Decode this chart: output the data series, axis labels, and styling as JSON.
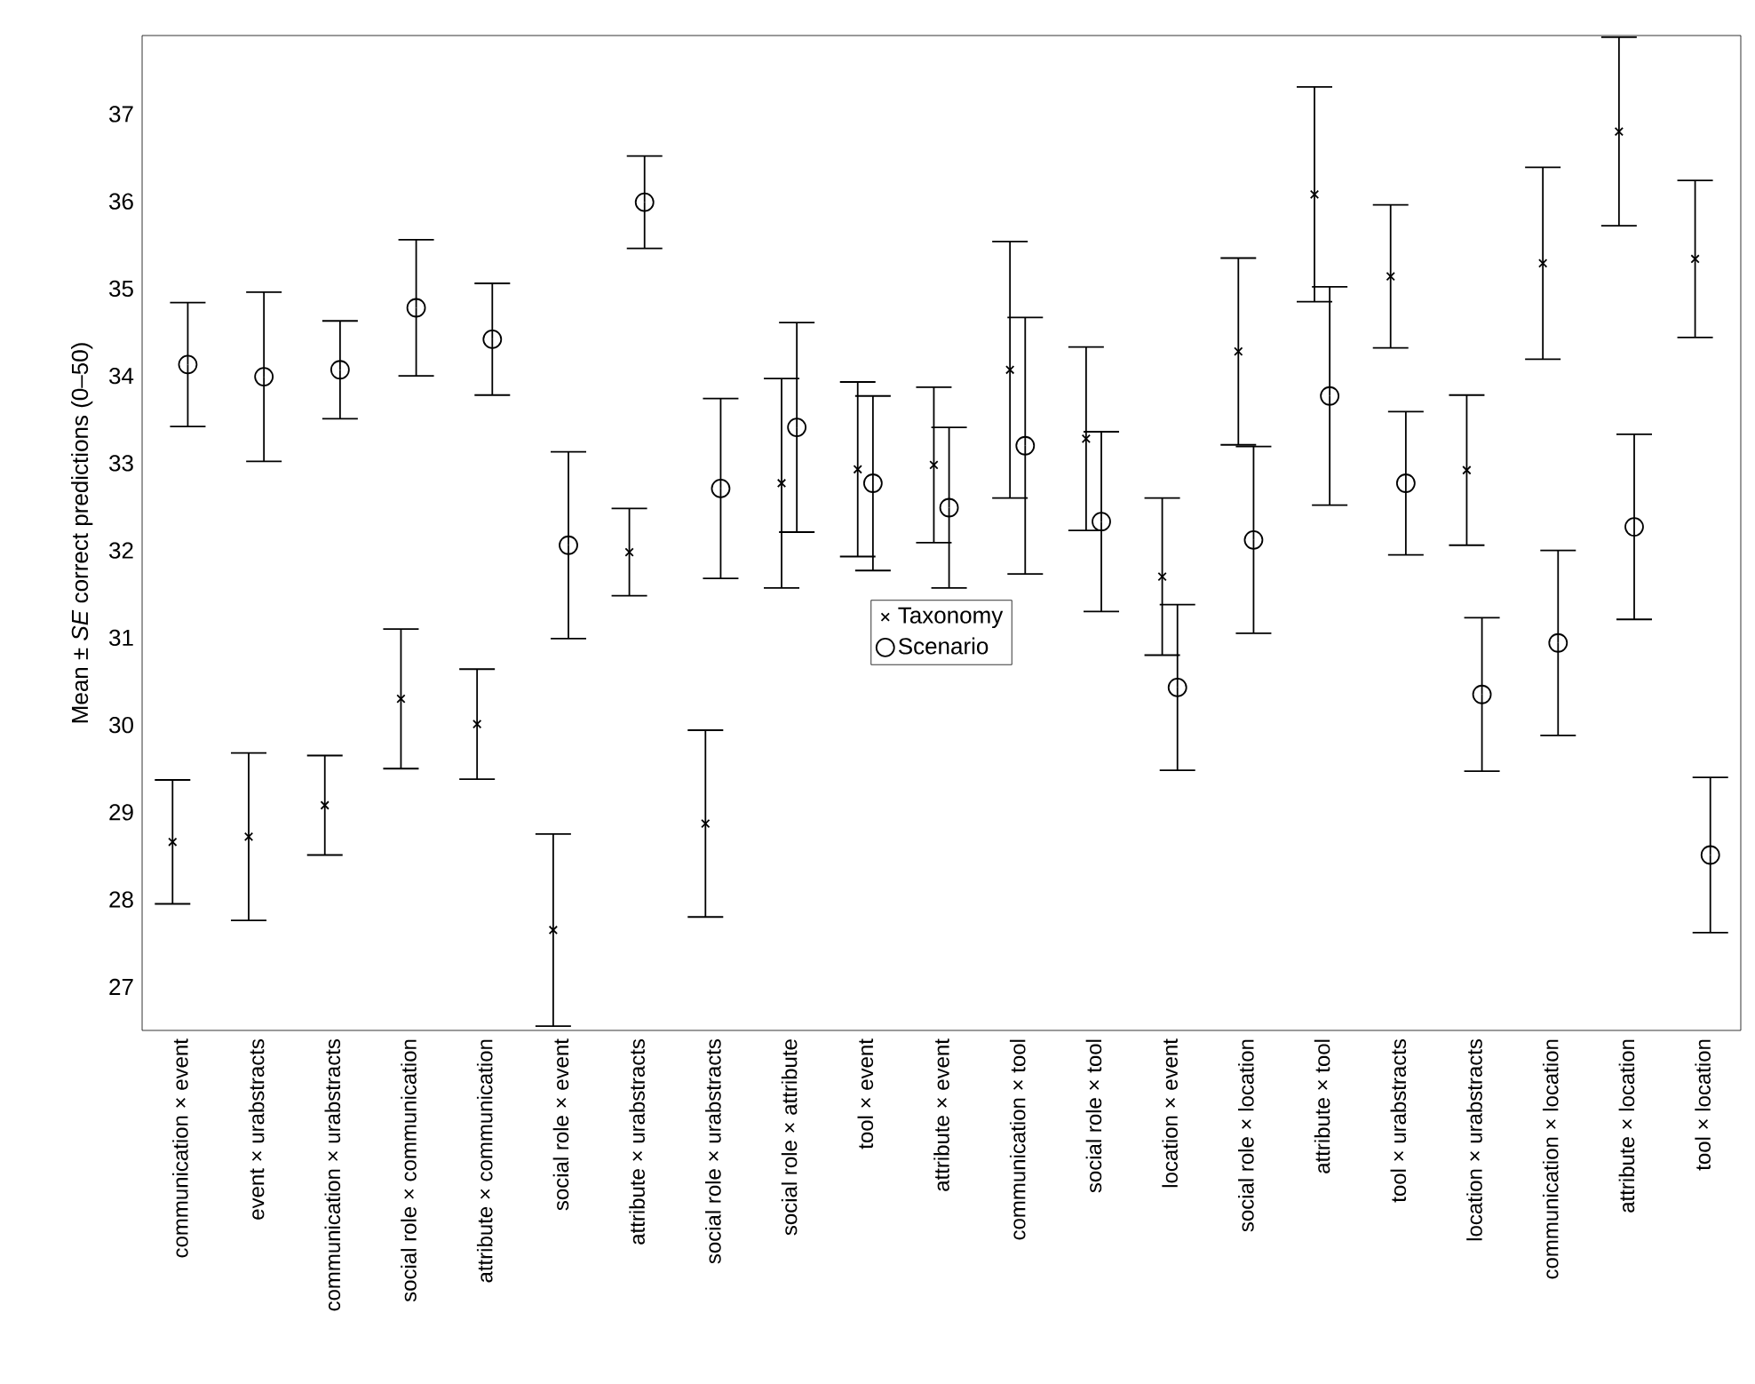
{
  "chart_data": {
    "type": "scatter",
    "ylabel": "Mean ± *SE* correct predictions (0–50)",
    "categories": [
      "communication × event",
      "event × urabstracts",
      "communication × urabstracts",
      "social role × communication",
      "attribute × communication",
      "social role × event",
      "attribute × urabstracts",
      "social role × urabstracts",
      "social role × attribute",
      "tool × event",
      "attribute × event",
      "communication × tool",
      "social role × tool",
      "location × event",
      "social role × location",
      "attribute × tool",
      "tool × urabstracts",
      "location × urabstracts",
      "communication × location",
      "attribute × location",
      "tool × location"
    ],
    "series": [
      {
        "name": "Taxonomy",
        "color": "#000000",
        "marker": "cross",
        "values": [
          28.66,
          28.72,
          29.08,
          30.3,
          30.01,
          27.65,
          31.98,
          28.87,
          32.77,
          32.93,
          32.98,
          34.07,
          33.28,
          31.7,
          34.28,
          36.08,
          35.14,
          32.92,
          35.29,
          36.8,
          35.34
        ],
        "errors": [
          0.71,
          0.96,
          0.57,
          0.8,
          0.63,
          1.1,
          0.5,
          1.07,
          1.2,
          1.0,
          0.89,
          1.47,
          1.05,
          0.9,
          1.07,
          1.23,
          0.82,
          0.86,
          1.1,
          1.08,
          0.9
        ]
      },
      {
        "name": "Scenario",
        "color": "#000000",
        "marker": "circle",
        "values": [
          34.13,
          33.99,
          34.07,
          34.78,
          34.42,
          32.06,
          35.99,
          32.71,
          33.41,
          32.77,
          32.49,
          33.2,
          32.33,
          30.43,
          32.12,
          33.77,
          32.77,
          30.35,
          30.94,
          32.27,
          28.51
        ],
        "errors": [
          0.71,
          0.97,
          0.56,
          0.78,
          0.64,
          1.07,
          0.53,
          1.03,
          1.2,
          1.0,
          0.92,
          1.47,
          1.03,
          0.95,
          1.07,
          1.25,
          0.82,
          0.88,
          1.06,
          1.06,
          0.89
        ]
      }
    ],
    "ylim": [
      26.5,
      37.9
    ],
    "yticks": [
      27,
      28,
      29,
      30,
      31,
      32,
      33,
      34,
      35,
      36,
      37
    ],
    "grid": false,
    "legend": "center"
  }
}
